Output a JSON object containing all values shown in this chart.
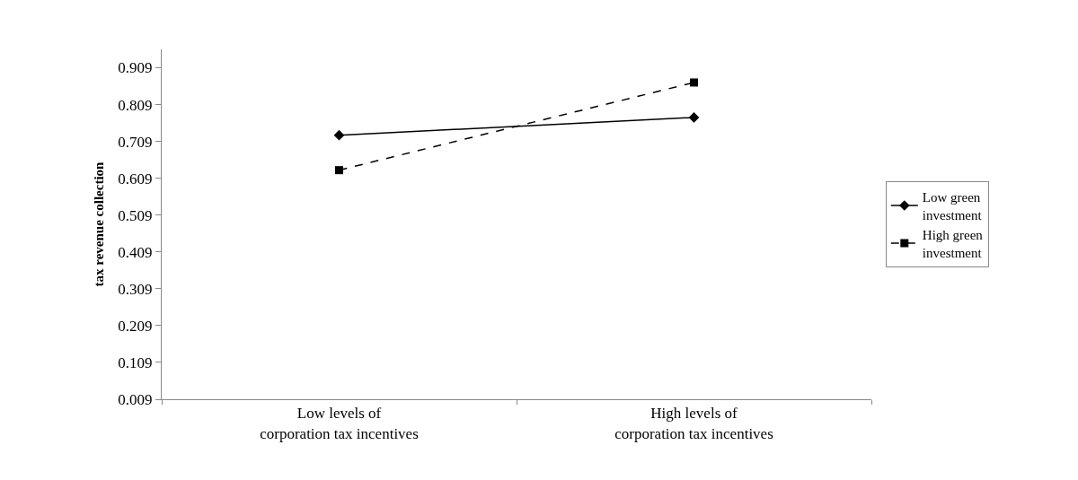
{
  "chart_data": {
    "type": "line",
    "ylabel": "tax revenue collection",
    "categories": [
      "Low levels of corporation tax incentives",
      "High levels of corporation tax incentives"
    ],
    "series": [
      {
        "name": "Low green investment",
        "color": "#000000",
        "values": [
          0.726,
          0.774
        ],
        "marker": "diamond",
        "line_style": "solid"
      },
      {
        "name": "High green investment",
        "color": "#000000",
        "values": [
          0.631,
          0.869
        ],
        "marker": "square",
        "line_style": "dashed"
      }
    ],
    "ylim": [
      0.009,
      0.959
    ],
    "yticks": [
      0.009,
      0.109,
      0.209,
      0.309,
      0.409,
      0.509,
      0.609,
      0.709,
      0.809,
      0.909
    ],
    "grid": false,
    "legend": "right"
  }
}
